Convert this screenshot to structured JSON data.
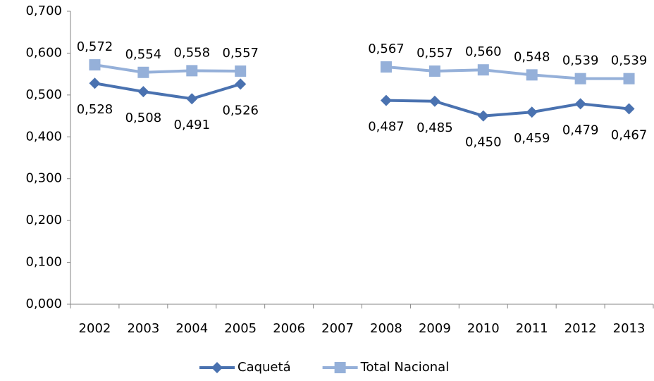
{
  "chart_data": {
    "type": "line",
    "categories": [
      "2002",
      "2003",
      "2004",
      "2005",
      "2006",
      "2007",
      "2008",
      "2009",
      "2010",
      "2011",
      "2012",
      "2013"
    ],
    "series": [
      {
        "name": "Caquetá",
        "color": "#4a72b0",
        "marker": "diamond",
        "values": [
          0.528,
          0.508,
          0.491,
          0.526,
          null,
          null,
          0.487,
          0.485,
          0.45,
          0.459,
          0.479,
          0.467
        ],
        "value_labels": [
          "0,528",
          "0,508",
          "0,491",
          "0,526",
          null,
          null,
          "0,487",
          "0,485",
          "0,450",
          "0,459",
          "0,479",
          "0,467"
        ],
        "label_position": "below"
      },
      {
        "name": "Total Nacional",
        "color": "#95b0d9",
        "marker": "square",
        "values": [
          0.572,
          0.554,
          0.558,
          0.557,
          null,
          null,
          0.567,
          0.557,
          0.56,
          0.548,
          0.539,
          0.539
        ],
        "value_labels": [
          "0,572",
          "0,554",
          "0,558",
          "0,557",
          null,
          null,
          "0,567",
          "0,557",
          "0,560",
          "0,548",
          "0,539",
          "0,539"
        ],
        "label_position": "above"
      }
    ],
    "ylim": [
      0,
      0.7
    ],
    "yticks": [
      {
        "value": 0,
        "label": "0,000"
      },
      {
        "value": 0.1,
        "label": "0,100"
      },
      {
        "value": 0.2,
        "label": "0,200"
      },
      {
        "value": 0.3,
        "label": "0,300"
      },
      {
        "value": 0.4,
        "label": "0,400"
      },
      {
        "value": 0.5,
        "label": "0,500"
      },
      {
        "value": 0.6,
        "label": "0,600"
      },
      {
        "value": 0.7,
        "label": "0,700"
      }
    ],
    "grid": false,
    "legend": "bottom"
  }
}
